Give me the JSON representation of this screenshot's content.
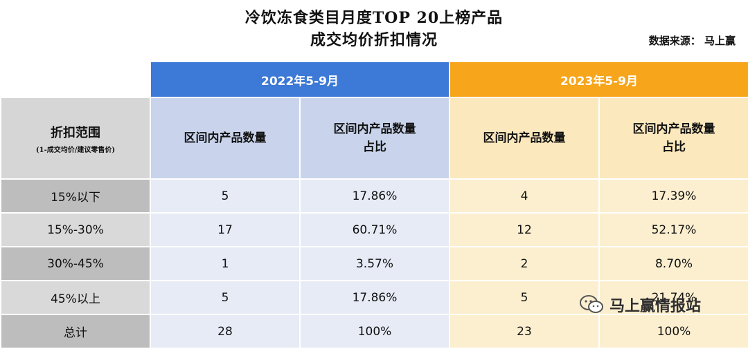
{
  "title_line1": "冷饮冻食类目月度TOP 20上榜产品",
  "title_line2": "成交均价折扣情况",
  "source": "数据来源： 马上赢",
  "watermark": "马上赢情报站",
  "period_headers": [
    "2022年5-9月",
    "2023年5-9月"
  ],
  "row_header": {
    "label": "折扣范围",
    "note": "(1-成交均价/建议零售价)"
  },
  "col_count_label": "区间内产品数量",
  "col_share_label": "区间内产品数量占比",
  "colors": {
    "blue_header": "#3d79d6",
    "orange_header": "#f7a51b"
  },
  "chart_data": {
    "type": "table",
    "title": "冷饮冻食类目月度TOP 20上榜产品成交均价折扣情况",
    "columns": [
      "折扣范围",
      "2022年5-9月 区间内产品数量",
      "2022年5-9月 区间内产品数量占比",
      "2023年5-9月 区间内产品数量",
      "2023年5-9月 区间内产品数量占比"
    ],
    "rows": [
      {
        "range": "15%以下",
        "count_2022": "5",
        "share_2022": "17.86%",
        "count_2023": "4",
        "share_2023": "17.39%"
      },
      {
        "range": "15%-30%",
        "count_2022": "17",
        "share_2022": "60.71%",
        "count_2023": "12",
        "share_2023": "52.17%"
      },
      {
        "range": "30%-45%",
        "count_2022": "1",
        "share_2022": "3.57%",
        "count_2023": "2",
        "share_2023": "8.70%"
      },
      {
        "range": "45%以上",
        "count_2022": "5",
        "share_2022": "17.86%",
        "count_2023": "5",
        "share_2023": "21.74%"
      },
      {
        "range": "总计",
        "count_2022": "28",
        "share_2022": "100%",
        "count_2023": "23",
        "share_2023": "100%"
      }
    ]
  }
}
